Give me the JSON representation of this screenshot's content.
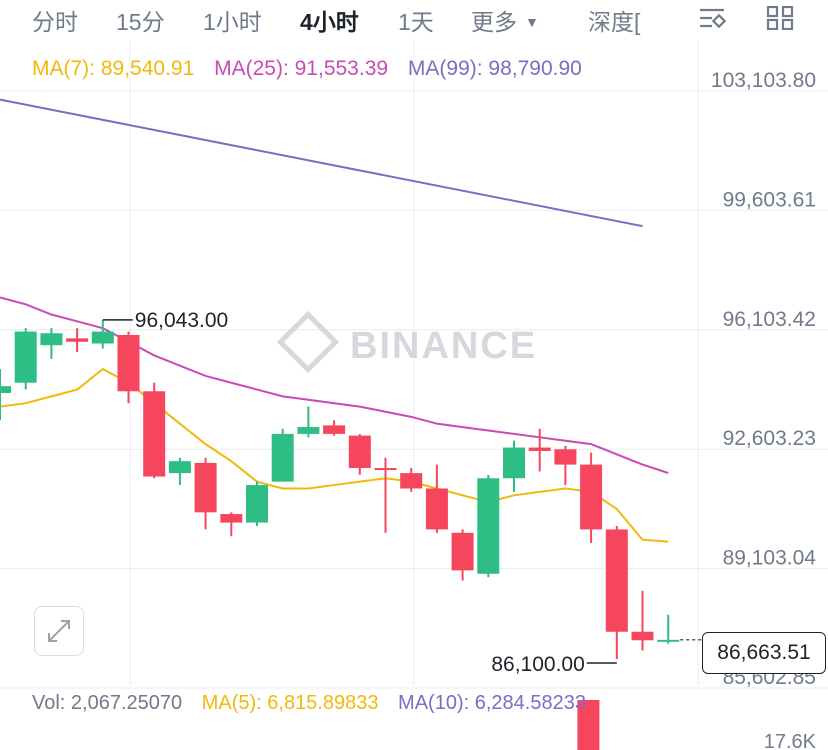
{
  "tabs": {
    "items": [
      "分时",
      "15分",
      "1小时",
      "4小时",
      "1天",
      "更多",
      "深度["
    ],
    "active_index": 3
  },
  "ma_legend": {
    "ma7": "MA(7): 89,540.91",
    "ma25": "MA(25): 91,553.39",
    "ma99": "MA(99): 98,790.90"
  },
  "colors": {
    "up": "#2ebd85",
    "down": "#f6465d",
    "ma7": "#f0b90b",
    "ma25": "#c94ab5",
    "ma99": "#7b6cc4",
    "grid": "#eaecef"
  },
  "price_axis_labels": [
    "103,103.80",
    "99,603.61",
    "96,103.42",
    "92,603.23",
    "89,103.04",
    "85,602.85"
  ],
  "annotations": {
    "high": "96,043.00",
    "low": "86,100.00"
  },
  "current_price": "86,663.51",
  "volume_legend": {
    "vol": "Vol: 2,067.25070",
    "ma5": "MA(5): 6,815.89833",
    "ma10": "MA(10): 6,284.58233"
  },
  "volume_axis_label": "17.6K",
  "watermark": "BINANCE",
  "chart_data": {
    "type": "candlestick",
    "y_axis_ticks": [
      103103.8,
      99603.61,
      96103.42,
      92603.23,
      89103.04,
      85602.85
    ],
    "candles": [
      {
        "open": 93900,
        "close": 94100,
        "high": 94600,
        "low": 93100
      },
      {
        "open": 94200,
        "close": 95700,
        "high": 95800,
        "low": 94000
      },
      {
        "open": 95300,
        "close": 95650,
        "high": 95800,
        "low": 94900
      },
      {
        "open": 95500,
        "close": 95400,
        "high": 95800,
        "low": 95100
      },
      {
        "open": 95350,
        "close": 95700,
        "high": 96043,
        "low": 95200
      },
      {
        "open": 95600,
        "close": 93950,
        "high": 95700,
        "low": 93600
      },
      {
        "open": 93950,
        "close": 91450,
        "high": 94200,
        "low": 91400
      },
      {
        "open": 91550,
        "close": 91900,
        "high": 92000,
        "low": 91200
      },
      {
        "open": 91850,
        "close": 90400,
        "high": 92000,
        "low": 89900
      },
      {
        "open": 90350,
        "close": 90100,
        "high": 90400,
        "low": 89700
      },
      {
        "open": 90100,
        "close": 91200,
        "high": 91300,
        "low": 90000
      },
      {
        "open": 91300,
        "close": 92700,
        "high": 92850,
        "low": 91300
      },
      {
        "open": 92700,
        "close": 92900,
        "high": 93500,
        "low": 92600
      },
      {
        "open": 92950,
        "close": 92700,
        "high": 93100,
        "low": 92650
      },
      {
        "open": 92650,
        "close": 91700,
        "high": 92700,
        "low": 91500
      },
      {
        "open": 91700,
        "close": 91650,
        "high": 92000,
        "low": 89800
      },
      {
        "open": 91550,
        "close": 91100,
        "high": 91700,
        "low": 91000
      },
      {
        "open": 91100,
        "close": 89900,
        "high": 91800,
        "low": 89800
      },
      {
        "open": 89800,
        "close": 88700,
        "high": 89900,
        "low": 88400
      },
      {
        "open": 88600,
        "close": 91400,
        "high": 91500,
        "low": 88500
      },
      {
        "open": 91400,
        "close": 92300,
        "high": 92500,
        "low": 91000
      },
      {
        "open": 92300,
        "close": 92200,
        "high": 92850,
        "low": 91600
      },
      {
        "open": 92250,
        "close": 91800,
        "high": 92350,
        "low": 91200
      },
      {
        "open": 91800,
        "close": 89900,
        "high": 92150,
        "low": 89500
      },
      {
        "open": 89900,
        "close": 86900,
        "high": 90000,
        "low": 86100
      },
      {
        "open": 86900,
        "close": 86650,
        "high": 88100,
        "low": 86350
      },
      {
        "open": 86650,
        "close": 86663.51,
        "high": 87400,
        "low": 86550
      }
    ],
    "ma7": [
      93500,
      93600,
      93800,
      94000,
      94600,
      94200,
      93600,
      93000,
      92400,
      91900,
      91300,
      91100,
      91100,
      91200,
      91300,
      91400,
      91300,
      91100,
      90900,
      90700,
      90900,
      91000,
      91100,
      91000,
      90500,
      89600,
      89540.91
    ],
    "ma25": [
      96700,
      96500,
      96200,
      96000,
      95800,
      95400,
      95000,
      94700,
      94400,
      94200,
      94000,
      93800,
      93700,
      93600,
      93500,
      93350,
      93200,
      93000,
      92900,
      92800,
      92700,
      92600,
      92500,
      92400,
      92100,
      91800,
      91553.39
    ],
    "ma99": {
      "start": 102500,
      "end": 98790.9
    }
  }
}
